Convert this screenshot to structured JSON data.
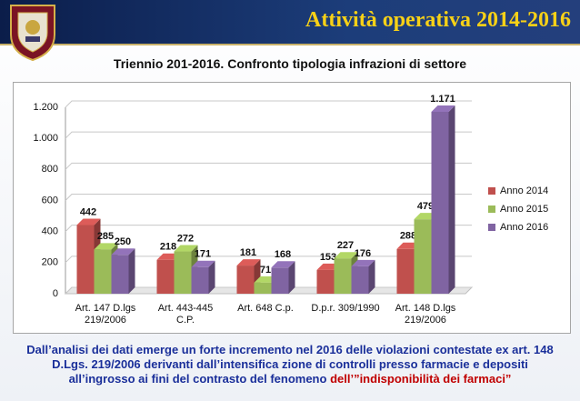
{
  "header": {
    "title": "Attività operativa 2014-2016"
  },
  "subtitle": "Triennio 201-2016.  Confronto tipologia infrazioni di settore",
  "chart_data": {
    "type": "bar",
    "categories": [
      [
        "Art. 147 D.lgs",
        "219/2006"
      ],
      [
        "Art. 443-445",
        "C.P."
      ],
      [
        "Art. 648 C.p."
      ],
      [
        "D.p.r. 309/1990"
      ],
      [
        "Art. 148 D.lgs",
        "219/2006"
      ]
    ],
    "series": [
      {
        "name": "Anno 2014",
        "color": "#c0504d",
        "values": [
          442,
          218,
          181,
          153,
          288
        ]
      },
      {
        "name": "Anno 2015",
        "color": "#9bbb59",
        "values": [
          285,
          272,
          71,
          227,
          479
        ]
      },
      {
        "name": "Anno 2016",
        "color": "#8064a2",
        "values": [
          250,
          171,
          168,
          176,
          1171
        ],
        "value_labels": [
          "250",
          "171",
          "168",
          "176",
          "1.171"
        ]
      }
    ],
    "ylim": [
      0,
      1200
    ],
    "yticks": [
      0,
      200,
      400,
      600,
      800,
      {
        "value": 1000,
        "label": "1.000"
      },
      {
        "value": 1200,
        "label": "1.200"
      }
    ],
    "grid": true,
    "legend": "right"
  },
  "footer": {
    "text": [
      "Dall’analisi dei dati emerge un forte incremento nel 2016 delle violazioni contestate ex art. 148",
      "D.Lgs. 219/2006 derivanti dall’intensifica zione di controlli presso farmacie e depositi",
      "all’ingrosso ai fini del contrasto del fenomeno "
    ],
    "highlight": "dell’”indisponibilità dei farmaci”"
  }
}
